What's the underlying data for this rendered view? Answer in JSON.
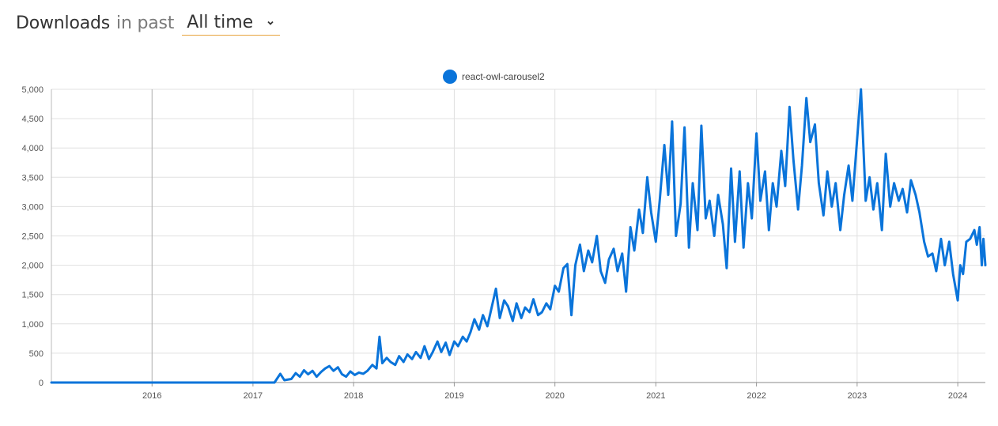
{
  "header": {
    "title": "Downloads",
    "subtitle": "in past",
    "period": {
      "selected": "All time"
    }
  },
  "colors": {
    "series": "#0a74da",
    "accent": "#e8a33d"
  },
  "icons": {
    "period_dropdown": "chevron-down-icon"
  },
  "chart_data": {
    "type": "line",
    "legend": {
      "position": "top-center",
      "entries": [
        "react-owl-carousel2"
      ]
    },
    "grid": true,
    "x_ticks": [
      "2016",
      "2017",
      "2018",
      "2019",
      "2020",
      "2021",
      "2022",
      "2023",
      "2024"
    ],
    "y_ticks": [
      "0",
      "500",
      "1,000",
      "1,500",
      "2,000",
      "2,500",
      "3,000",
      "3,500",
      "4,000",
      "4,500",
      "5,000"
    ],
    "ylim": [
      0,
      5000
    ],
    "xlim": [
      "2015-01-01",
      "2024-04-10"
    ],
    "series": [
      {
        "name": "react-owl-carousel2",
        "color": "#0a74da",
        "points": [
          [
            "2015-01-01",
            0
          ],
          [
            "2017-03-20",
            0
          ],
          [
            "2017-04-10",
            150
          ],
          [
            "2017-04-25",
            40
          ],
          [
            "2017-05-20",
            60
          ],
          [
            "2017-06-05",
            160
          ],
          [
            "2017-06-20",
            100
          ],
          [
            "2017-07-05",
            210
          ],
          [
            "2017-07-20",
            140
          ],
          [
            "2017-08-05",
            200
          ],
          [
            "2017-08-20",
            100
          ],
          [
            "2017-09-05",
            180
          ],
          [
            "2017-09-20",
            240
          ],
          [
            "2017-10-05",
            280
          ],
          [
            "2017-10-20",
            200
          ],
          [
            "2017-11-05",
            260
          ],
          [
            "2017-11-20",
            140
          ],
          [
            "2017-12-05",
            100
          ],
          [
            "2017-12-20",
            190
          ],
          [
            "2018-01-05",
            130
          ],
          [
            "2018-01-20",
            170
          ],
          [
            "2018-02-05",
            150
          ],
          [
            "2018-02-20",
            200
          ],
          [
            "2018-03-10",
            300
          ],
          [
            "2018-03-25",
            240
          ],
          [
            "2018-04-05",
            780
          ],
          [
            "2018-04-15",
            330
          ],
          [
            "2018-05-01",
            420
          ],
          [
            "2018-05-15",
            350
          ],
          [
            "2018-06-01",
            300
          ],
          [
            "2018-06-15",
            450
          ],
          [
            "2018-07-01",
            350
          ],
          [
            "2018-07-15",
            480
          ],
          [
            "2018-08-01",
            400
          ],
          [
            "2018-08-15",
            520
          ],
          [
            "2018-09-01",
            420
          ],
          [
            "2018-09-15",
            620
          ],
          [
            "2018-10-01",
            400
          ],
          [
            "2018-10-15",
            520
          ],
          [
            "2018-11-01",
            700
          ],
          [
            "2018-11-15",
            520
          ],
          [
            "2018-12-01",
            680
          ],
          [
            "2018-12-15",
            470
          ],
          [
            "2019-01-01",
            700
          ],
          [
            "2019-01-15",
            620
          ],
          [
            "2019-02-01",
            780
          ],
          [
            "2019-02-15",
            700
          ],
          [
            "2019-03-01",
            860
          ],
          [
            "2019-03-15",
            1080
          ],
          [
            "2019-04-01",
            900
          ],
          [
            "2019-04-15",
            1150
          ],
          [
            "2019-05-01",
            960
          ],
          [
            "2019-05-15",
            1250
          ],
          [
            "2019-06-01",
            1600
          ],
          [
            "2019-06-15",
            1100
          ],
          [
            "2019-07-01",
            1400
          ],
          [
            "2019-07-15",
            1300
          ],
          [
            "2019-08-01",
            1050
          ],
          [
            "2019-08-15",
            1350
          ],
          [
            "2019-09-01",
            1100
          ],
          [
            "2019-09-15",
            1280
          ],
          [
            "2019-10-01",
            1200
          ],
          [
            "2019-10-15",
            1420
          ],
          [
            "2019-11-01",
            1150
          ],
          [
            "2019-11-15",
            1200
          ],
          [
            "2019-12-01",
            1350
          ],
          [
            "2019-12-15",
            1250
          ],
          [
            "2020-01-01",
            1650
          ],
          [
            "2020-01-15",
            1550
          ],
          [
            "2020-02-01",
            1950
          ],
          [
            "2020-02-15",
            2020
          ],
          [
            "2020-03-01",
            1150
          ],
          [
            "2020-03-15",
            2000
          ],
          [
            "2020-04-01",
            2350
          ],
          [
            "2020-04-15",
            1900
          ],
          [
            "2020-05-01",
            2250
          ],
          [
            "2020-05-15",
            2050
          ],
          [
            "2020-06-01",
            2500
          ],
          [
            "2020-06-15",
            1900
          ],
          [
            "2020-07-01",
            1700
          ],
          [
            "2020-07-15",
            2100
          ],
          [
            "2020-08-01",
            2280
          ],
          [
            "2020-08-15",
            1900
          ],
          [
            "2020-09-01",
            2200
          ],
          [
            "2020-09-15",
            1550
          ],
          [
            "2020-10-01",
            2650
          ],
          [
            "2020-10-15",
            2250
          ],
          [
            "2020-11-01",
            2950
          ],
          [
            "2020-11-15",
            2550
          ],
          [
            "2020-12-01",
            3500
          ],
          [
            "2020-12-15",
            2900
          ],
          [
            "2021-01-01",
            2400
          ],
          [
            "2021-01-15",
            3100
          ],
          [
            "2021-02-01",
            4050
          ],
          [
            "2021-02-15",
            3200
          ],
          [
            "2021-03-01",
            4450
          ],
          [
            "2021-03-15",
            2500
          ],
          [
            "2021-04-01",
            3050
          ],
          [
            "2021-04-15",
            4350
          ],
          [
            "2021-05-01",
            2300
          ],
          [
            "2021-05-15",
            3400
          ],
          [
            "2021-06-01",
            2600
          ],
          [
            "2021-06-15",
            4380
          ],
          [
            "2021-07-01",
            2800
          ],
          [
            "2021-07-15",
            3100
          ],
          [
            "2021-08-01",
            2500
          ],
          [
            "2021-08-15",
            3200
          ],
          [
            "2021-09-01",
            2700
          ],
          [
            "2021-09-15",
            1950
          ],
          [
            "2021-10-01",
            3650
          ],
          [
            "2021-10-15",
            2400
          ],
          [
            "2021-11-01",
            3600
          ],
          [
            "2021-11-15",
            2300
          ],
          [
            "2021-12-01",
            3400
          ],
          [
            "2021-12-15",
            2800
          ],
          [
            "2022-01-01",
            4250
          ],
          [
            "2022-01-15",
            3100
          ],
          [
            "2022-02-01",
            3600
          ],
          [
            "2022-02-15",
            2600
          ],
          [
            "2022-03-01",
            3400
          ],
          [
            "2022-03-15",
            3000
          ],
          [
            "2022-04-01",
            3950
          ],
          [
            "2022-04-15",
            3350
          ],
          [
            "2022-05-01",
            4700
          ],
          [
            "2022-05-15",
            3800
          ],
          [
            "2022-06-01",
            2950
          ],
          [
            "2022-06-15",
            3700
          ],
          [
            "2022-07-01",
            4850
          ],
          [
            "2022-07-15",
            4100
          ],
          [
            "2022-08-01",
            4400
          ],
          [
            "2022-08-15",
            3400
          ],
          [
            "2022-09-01",
            2850
          ],
          [
            "2022-09-15",
            3600
          ],
          [
            "2022-10-01",
            3000
          ],
          [
            "2022-10-15",
            3400
          ],
          [
            "2022-11-01",
            2600
          ],
          [
            "2022-11-15",
            3200
          ],
          [
            "2022-12-01",
            3700
          ],
          [
            "2022-12-15",
            3100
          ],
          [
            "2023-01-15",
            5000
          ],
          [
            "2023-02-01",
            3100
          ],
          [
            "2023-02-15",
            3500
          ],
          [
            "2023-03-01",
            2950
          ],
          [
            "2023-03-15",
            3400
          ],
          [
            "2023-04-01",
            2600
          ],
          [
            "2023-04-15",
            3900
          ],
          [
            "2023-05-01",
            3000
          ],
          [
            "2023-05-15",
            3400
          ],
          [
            "2023-06-01",
            3100
          ],
          [
            "2023-06-15",
            3300
          ],
          [
            "2023-07-01",
            2900
          ],
          [
            "2023-07-15",
            3450
          ],
          [
            "2023-08-01",
            3200
          ],
          [
            "2023-08-15",
            2900
          ],
          [
            "2023-09-01",
            2400
          ],
          [
            "2023-09-15",
            2150
          ],
          [
            "2023-10-01",
            2200
          ],
          [
            "2023-10-15",
            1900
          ],
          [
            "2023-11-01",
            2450
          ],
          [
            "2023-11-15",
            2000
          ],
          [
            "2023-12-01",
            2400
          ],
          [
            "2023-12-15",
            1850
          ],
          [
            "2024-01-01",
            1400
          ],
          [
            "2024-01-10",
            2000
          ],
          [
            "2024-01-20",
            1850
          ],
          [
            "2024-02-01",
            2400
          ],
          [
            "2024-02-15",
            2450
          ],
          [
            "2024-03-01",
            2600
          ],
          [
            "2024-03-10",
            2350
          ],
          [
            "2024-03-20",
            2650
          ],
          [
            "2024-03-28",
            2000
          ],
          [
            "2024-04-03",
            2450
          ],
          [
            "2024-04-10",
            2000
          ]
        ]
      }
    ]
  }
}
